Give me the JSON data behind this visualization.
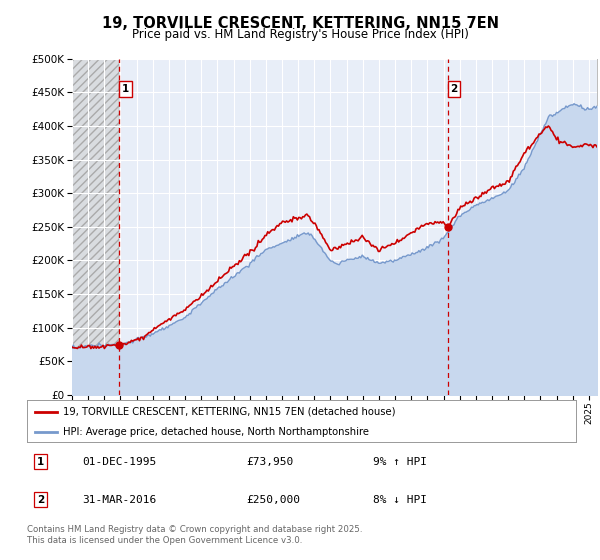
{
  "title": "19, TORVILLE CRESCENT, KETTERING, NN15 7EN",
  "subtitle": "Price paid vs. HM Land Registry's House Price Index (HPI)",
  "ylim": [
    0,
    500000
  ],
  "xlim_start": 1993,
  "xlim_end": 2025.5,
  "sale1_x": 1995.92,
  "sale1_y": 73950,
  "sale1_label": "1",
  "sale2_x": 2016.25,
  "sale2_y": 250000,
  "sale2_label": "2",
  "sale1_date": "01-DEC-1995",
  "sale1_price": "£73,950",
  "sale1_hpi": "9% ↑ HPI",
  "sale2_date": "31-MAR-2016",
  "sale2_price": "£250,000",
  "sale2_hpi": "8% ↓ HPI",
  "legend_entry1": "19, TORVILLE CRESCENT, KETTERING, NN15 7EN (detached house)",
  "legend_entry2": "HPI: Average price, detached house, North Northamptonshire",
  "footnote": "Contains HM Land Registry data © Crown copyright and database right 2025.\nThis data is licensed under the Open Government Licence v3.0.",
  "line1_color": "#cc0000",
  "line2_color": "#7799cc",
  "line2_fill_color": "#c8d8ee",
  "vline_color": "#cc0000",
  "background_color": "#ffffff",
  "plot_bg_color": "#e8eef8",
  "grid_color": "#ffffff",
  "hatch_bg_color": "#d8d8d8"
}
